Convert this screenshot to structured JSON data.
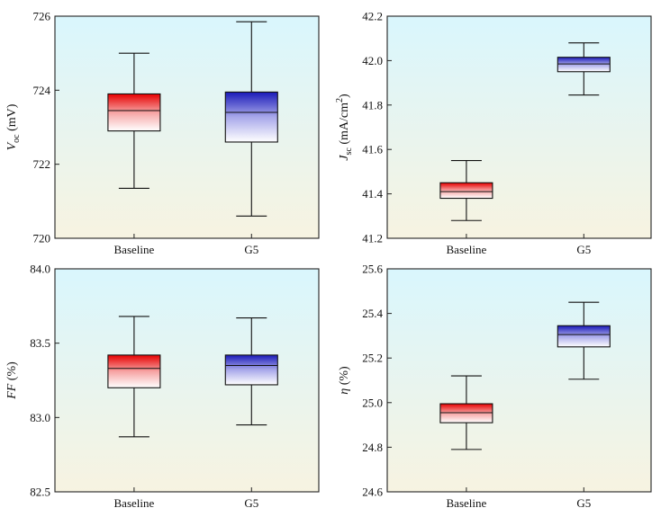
{
  "colors": {
    "baseline": "#e60000",
    "g5": "#1a1ab8",
    "bg_top": "#d9f6fd",
    "bg_bottom": "#f7f3e1"
  },
  "chart_data": [
    {
      "id": "voc",
      "type": "box",
      "ylabel": {
        "main": "V",
        "sub": "oc",
        "unit": " (mV)",
        "sup": ""
      },
      "ylim": [
        720,
        726
      ],
      "yticks": [
        "720",
        "722",
        "724",
        "726"
      ],
      "categories": [
        "Baseline",
        "G5"
      ],
      "boxes": [
        {
          "name": "Baseline",
          "whisker_low": 721.35,
          "q1": 722.9,
          "median": 723.45,
          "q3": 723.9,
          "whisker_high": 725.0
        },
        {
          "name": "G5",
          "whisker_low": 720.6,
          "q1": 722.6,
          "median": 723.4,
          "q3": 723.95,
          "whisker_high": 725.85
        }
      ]
    },
    {
      "id": "jsc",
      "type": "box",
      "ylabel": {
        "main": "J",
        "sub": "sc",
        "unit": " (mA/cm",
        "sup": "2"
      },
      "ylim": [
        41.2,
        42.2
      ],
      "yticks": [
        "41.2",
        "41.4",
        "41.6",
        "41.8",
        "42.0",
        "42.2"
      ],
      "categories": [
        "Baseline",
        "G5"
      ],
      "boxes": [
        {
          "name": "Baseline",
          "whisker_low": 41.28,
          "q1": 41.38,
          "median": 41.41,
          "q3": 41.45,
          "whisker_high": 41.55
        },
        {
          "name": "G5",
          "whisker_low": 41.845,
          "q1": 41.95,
          "median": 41.985,
          "q3": 42.015,
          "whisker_high": 42.08
        }
      ]
    },
    {
      "id": "ff",
      "type": "box",
      "ylabel": {
        "main": "FF",
        "sub": "",
        "unit": " (%)",
        "sup": ""
      },
      "ylim": [
        82.5,
        84.0
      ],
      "yticks": [
        "82.5",
        "83.0",
        "83.5",
        "84.0"
      ],
      "categories": [
        "Baseline",
        "G5"
      ],
      "boxes": [
        {
          "name": "Baseline",
          "whisker_low": 82.87,
          "q1": 83.2,
          "median": 83.33,
          "q3": 83.42,
          "whisker_high": 83.68
        },
        {
          "name": "G5",
          "whisker_low": 82.95,
          "q1": 83.22,
          "median": 83.35,
          "q3": 83.42,
          "whisker_high": 83.67
        }
      ]
    },
    {
      "id": "eta",
      "type": "box",
      "ylabel": {
        "main": "η",
        "sub": "",
        "unit": " (%)",
        "sup": ""
      },
      "ylim": [
        24.6,
        25.6
      ],
      "yticks": [
        "24.6",
        "24.8",
        "25.0",
        "25.2",
        "25.4",
        "25.6"
      ],
      "categories": [
        "Baseline",
        "G5"
      ],
      "boxes": [
        {
          "name": "Baseline",
          "whisker_low": 24.79,
          "q1": 24.91,
          "median": 24.955,
          "q3": 24.995,
          "whisker_high": 25.12
        },
        {
          "name": "G5",
          "whisker_low": 25.105,
          "q1": 25.25,
          "median": 25.305,
          "q3": 25.345,
          "whisker_high": 25.45
        }
      ]
    }
  ]
}
